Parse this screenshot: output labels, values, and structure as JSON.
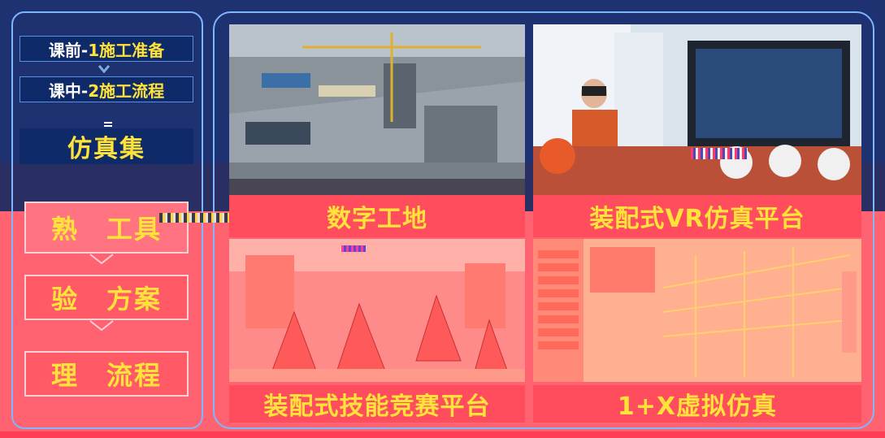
{
  "steps": {
    "pre_prefix": "课前-",
    "pre_main": "1施工准备",
    "mid_prefix": "课中-",
    "mid_main": "2施工流程"
  },
  "sim_section": {
    "title": "仿真集",
    "items": [
      {
        "c1": "熟",
        "c2": "工具"
      },
      {
        "c1": "验",
        "c2": "方案"
      },
      {
        "c1": "理",
        "c2": "流程"
      }
    ]
  },
  "tiles": [
    {
      "caption": "数字工地"
    },
    {
      "caption": "装配式VR仿真平台"
    },
    {
      "caption": "装配式技能竞赛平台"
    },
    {
      "caption": "1+X虚拟仿真"
    }
  ],
  "colors": {
    "accent_yellow": "#ffe23a",
    "panel_blue": "#0e2a69",
    "overlay_red": "#ff6271"
  }
}
